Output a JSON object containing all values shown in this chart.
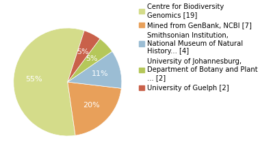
{
  "labels": [
    "Centre for Biodiversity\nGenomics [19]",
    "Mined from GenBank, NCBI [7]",
    "Smithsonian Institution,\nNational Museum of Natural\nHistory... [4]",
    "University of Johannesburg,\nDepartment of Botany and Plant\n... [2]",
    "University of Guelph [2]"
  ],
  "values": [
    55,
    20,
    11,
    5,
    5
  ],
  "colors": [
    "#d4dc8a",
    "#e8a05a",
    "#9bbdd4",
    "#b5c75a",
    "#c9614a"
  ],
  "pct_labels": [
    "55%",
    "20%",
    "11%",
    "5%",
    "5%"
  ],
  "text_color": "white",
  "background_color": "#ffffff",
  "fontsize": 8,
  "legend_fontsize": 7.2,
  "startangle": 72
}
